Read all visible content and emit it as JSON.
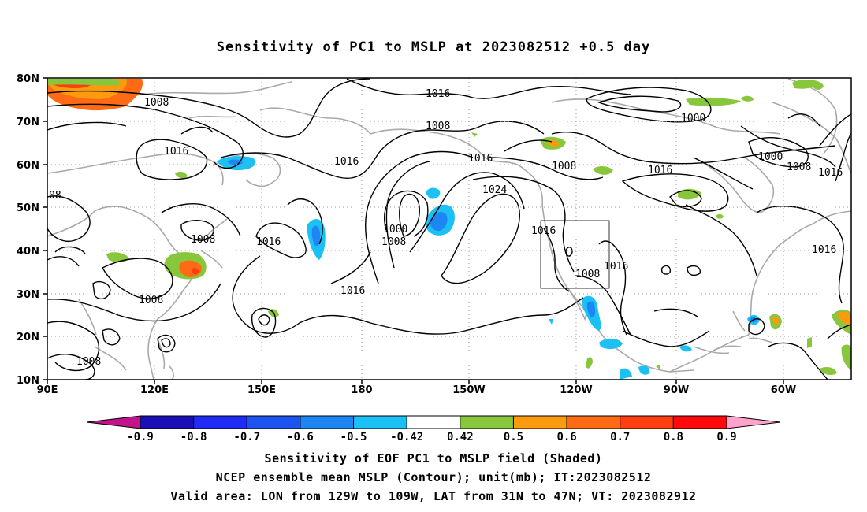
{
  "title": "Sensitivity of PC1 to MSLP at 2023082512 +0.5 day",
  "lat_labels": [
    "80N",
    "70N",
    "60N",
    "50N",
    "40N",
    "30N",
    "20N",
    "10N"
  ],
  "lon_labels": [
    "90E",
    "120E",
    "150E",
    "180",
    "150W",
    "120W",
    "90W",
    "60W"
  ],
  "contour_labels": [
    {
      "text": "1008"
    },
    {
      "text": "1016"
    },
    {
      "text": "1008"
    },
    {
      "text": "1016"
    },
    {
      "text": "1016"
    },
    {
      "text": "1024"
    },
    {
      "text": "1008"
    },
    {
      "text": "1016"
    },
    {
      "text": "1000"
    },
    {
      "text": "1000"
    },
    {
      "text": "1008"
    },
    {
      "text": "1016"
    },
    {
      "text": "1008"
    },
    {
      "text": "1016"
    },
    {
      "text": "1000"
    },
    {
      "text": "1008"
    },
    {
      "text": "1016"
    },
    {
      "text": "1016"
    },
    {
      "text": "1016"
    },
    {
      "text": "1008"
    },
    {
      "text": "1016"
    },
    {
      "text": "1008"
    },
    {
      "text": "1008"
    },
    {
      "text": "08"
    }
  ],
  "colorbar": {
    "colors": [
      "#c2138d",
      "#1a0fb5",
      "#1f2cf5",
      "#1d54f0",
      "#1e86f2",
      "#1bc0f4",
      "#ffffff",
      "#88c73c",
      "#fd9b10",
      "#ff6a14",
      "#ff3e12",
      "#fd0a0c",
      "#ffa2cc"
    ],
    "ticks": [
      "-0.9",
      "-0.8",
      "-0.7",
      "-0.6",
      "-0.5",
      "-0.42",
      "0.42",
      "0.5",
      "0.6",
      "0.7",
      "0.8",
      "0.9"
    ]
  },
  "caption_lines": [
    "Sensitivity of EOF PC1 to MSLP field (Shaded)",
    "NCEP ensemble mean MSLP (Contour); unit(mb); IT:2023082512",
    "Valid area: LON from 129W to 109W, LAT from 31N to 47N; VT: 2023082912"
  ]
}
